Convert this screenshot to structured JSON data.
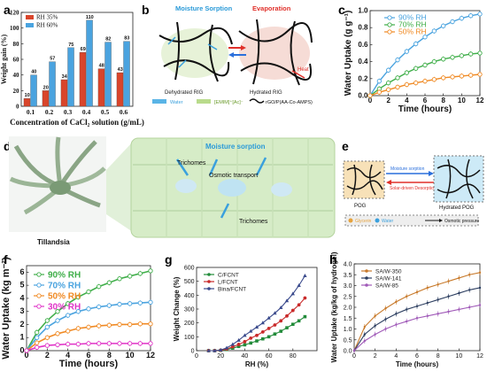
{
  "panels": [
    {
      "letter": "a"
    },
    {
      "letter": "b"
    },
    {
      "letter": "c"
    },
    {
      "letter": "d"
    },
    {
      "letter": "e"
    },
    {
      "letter": "f"
    },
    {
      "letter": "g"
    },
    {
      "letter": "h"
    }
  ],
  "schematic_b": {
    "moisture_sorption": "Moisture Sorption",
    "evaporation": "Evaporation",
    "heat": "Heat",
    "dehydrated": "Dehydrated RIG",
    "hydrated": "Hydrated RIG",
    "legend_water": "Water",
    "legend_il": "[EMIM]⁺[Ac]⁻",
    "legend_rgo": "rGO/P(AA-Co-AMPS)"
  },
  "schematic_d": {
    "plant": "Tillandsia",
    "sorption": "Moisture sorption",
    "trichomes": "Trichomes",
    "osmotic": "Osmotic transport",
    "trichomes2": "Trichomes"
  },
  "schematic_e": {
    "pog": "POG",
    "sorption": "Moisture sorption",
    "desorption": "Solar-driven Desorption",
    "hydrated": "Hydrated POG",
    "glycerin": "Glycerin",
    "water": "Water",
    "osmotic": "Osmotic pressure"
  },
  "colors": {
    "blue": "#4aa3df",
    "green": "#3fae49",
    "orange": "#f08a24",
    "magenta": "#e033c7",
    "red": "#d9452b",
    "navy": "#3a4a8c",
    "dark_green": "#228b3a",
    "dark_red": "#c92a2a",
    "purple": "#a05ab8",
    "brown": "#c87a2b",
    "slate": "#2c3e60"
  },
  "chart_data": [
    {
      "id": "a",
      "type": "bar",
      "categories": [
        "0.1",
        "0.2",
        "0.3",
        "0.4",
        "0.5",
        "0.6"
      ],
      "series": [
        {
          "name": "RH 35%",
          "values": [
            10,
            20,
            34,
            69,
            48,
            43
          ]
        },
        {
          "name": "RH 60%",
          "values": [
            40,
            57,
            75,
            110,
            82,
            83
          ]
        }
      ],
      "xlabel": "Concentration of CaCl₂ solution (g/mL)",
      "ylabel": "Weight gain (%)",
      "ylim": [
        0,
        120
      ],
      "yticks": [
        0,
        20,
        40,
        60,
        80,
        100,
        120
      ],
      "data_labels": true,
      "legend": "top-left"
    },
    {
      "id": "c",
      "type": "line",
      "x": [
        0,
        1,
        2,
        3,
        4,
        5,
        6,
        7,
        8,
        9,
        10,
        11,
        12
      ],
      "series": [
        {
          "name": "90% RH",
          "values": [
            0,
            0.17,
            0.3,
            0.42,
            0.52,
            0.61,
            0.69,
            0.76,
            0.82,
            0.87,
            0.91,
            0.94,
            0.96
          ]
        },
        {
          "name": "70% RH",
          "values": [
            0,
            0.08,
            0.15,
            0.21,
            0.27,
            0.32,
            0.36,
            0.4,
            0.43,
            0.45,
            0.47,
            0.49,
            0.5
          ]
        },
        {
          "name": "50% RH",
          "values": [
            0,
            0.04,
            0.07,
            0.1,
            0.13,
            0.15,
            0.17,
            0.19,
            0.21,
            0.22,
            0.23,
            0.24,
            0.25
          ]
        }
      ],
      "xlabel": "Time (hours)",
      "ylabel": "Water Uptake (g g⁻¹)",
      "xlim": [
        0,
        12
      ],
      "ylim": [
        0,
        1.0
      ],
      "xticks": [
        0,
        2,
        4,
        6,
        8,
        10,
        12
      ],
      "yticks": [
        0.0,
        0.2,
        0.4,
        0.6,
        0.8,
        1.0
      ],
      "legend": "top-left"
    },
    {
      "id": "f",
      "type": "line",
      "x": [
        0,
        1,
        2,
        3,
        4,
        5,
        6,
        7,
        8,
        9,
        10,
        11,
        12
      ],
      "series": [
        {
          "name": "90% RH",
          "values": [
            0,
            1.4,
            2.3,
            3.0,
            3.6,
            4.1,
            4.5,
            4.9,
            5.2,
            5.5,
            5.7,
            5.9,
            6.1
          ]
        },
        {
          "name": "70% RH",
          "values": [
            0,
            1.0,
            1.8,
            2.3,
            2.7,
            3.0,
            3.2,
            3.35,
            3.45,
            3.55,
            3.6,
            3.65,
            3.7
          ]
        },
        {
          "name": "50% RH",
          "values": [
            0,
            0.6,
            1.0,
            1.3,
            1.5,
            1.7,
            1.8,
            1.9,
            1.95,
            2.0,
            2.0,
            2.05,
            2.05
          ]
        },
        {
          "name": "30% RH",
          "values": [
            0,
            0.25,
            0.4,
            0.45,
            0.5,
            0.5,
            0.55,
            0.55,
            0.55,
            0.55,
            0.55,
            0.55,
            0.55
          ]
        }
      ],
      "xlabel": "Time (hours)",
      "ylabel": "Water Uptake (kg m⁻²)",
      "xlim": [
        0,
        12
      ],
      "ylim": [
        0,
        6.5
      ],
      "xticks": [
        0,
        2,
        4,
        6,
        8,
        10,
        12
      ],
      "yticks": [
        0,
        1,
        2,
        3,
        4,
        5,
        6
      ],
      "legend": "top-left"
    },
    {
      "id": "g",
      "type": "line",
      "x": [
        10,
        15,
        20,
        25,
        30,
        35,
        40,
        45,
        50,
        55,
        60,
        65,
        70,
        75,
        80,
        85,
        90
      ],
      "series": [
        {
          "name": "C/FCNT",
          "values": [
            0,
            0,
            2,
            8,
            18,
            30,
            42,
            55,
            70,
            85,
            100,
            120,
            140,
            165,
            190,
            215,
            245
          ]
        },
        {
          "name": "L/FCNT",
          "values": [
            0,
            0,
            3,
            12,
            28,
            45,
            65,
            90,
            110,
            135,
            160,
            185,
            215,
            250,
            290,
            330,
            380
          ]
        },
        {
          "name": "Bina/FCNT",
          "values": [
            0,
            0,
            5,
            20,
            45,
            75,
            110,
            140,
            170,
            200,
            235,
            270,
            310,
            360,
            410,
            470,
            540
          ]
        }
      ],
      "xlabel": "RH (%)",
      "ylabel": "Weight Change (%)",
      "xlim": [
        0,
        100
      ],
      "ylim": [
        0,
        600
      ],
      "xticks": [
        0,
        20,
        40,
        60,
        80
      ],
      "yticks": [
        0,
        100,
        200,
        300,
        400,
        500,
        600
      ],
      "legend": "top-left"
    },
    {
      "id": "h",
      "type": "line",
      "x": [
        0,
        1,
        2,
        3,
        4,
        5,
        6,
        7,
        8,
        9,
        10,
        11,
        12
      ],
      "series": [
        {
          "name": "SA/W-350",
          "values": [
            0,
            1.1,
            1.6,
            1.95,
            2.25,
            2.5,
            2.7,
            2.9,
            3.05,
            3.2,
            3.35,
            3.5,
            3.6
          ]
        },
        {
          "name": "SA/W-141",
          "values": [
            0,
            0.75,
            1.15,
            1.45,
            1.7,
            1.9,
            2.05,
            2.2,
            2.35,
            2.5,
            2.65,
            2.8,
            2.9
          ]
        },
        {
          "name": "SA/W-85",
          "values": [
            0,
            0.45,
            0.75,
            1.0,
            1.2,
            1.35,
            1.5,
            1.6,
            1.7,
            1.8,
            1.9,
            2.0,
            2.1
          ]
        }
      ],
      "xlabel": "Time (hours)",
      "ylabel": "Water Uptake (kg/kg of hydrogel)",
      "xlim": [
        0,
        12
      ],
      "ylim": [
        0,
        4.0
      ],
      "xticks": [
        0,
        2,
        4,
        6,
        8,
        10,
        12
      ],
      "yticks": [
        0.0,
        0.5,
        1.0,
        1.5,
        2.0,
        2.5,
        3.0,
        3.5,
        4.0
      ],
      "legend": "top-left"
    }
  ]
}
